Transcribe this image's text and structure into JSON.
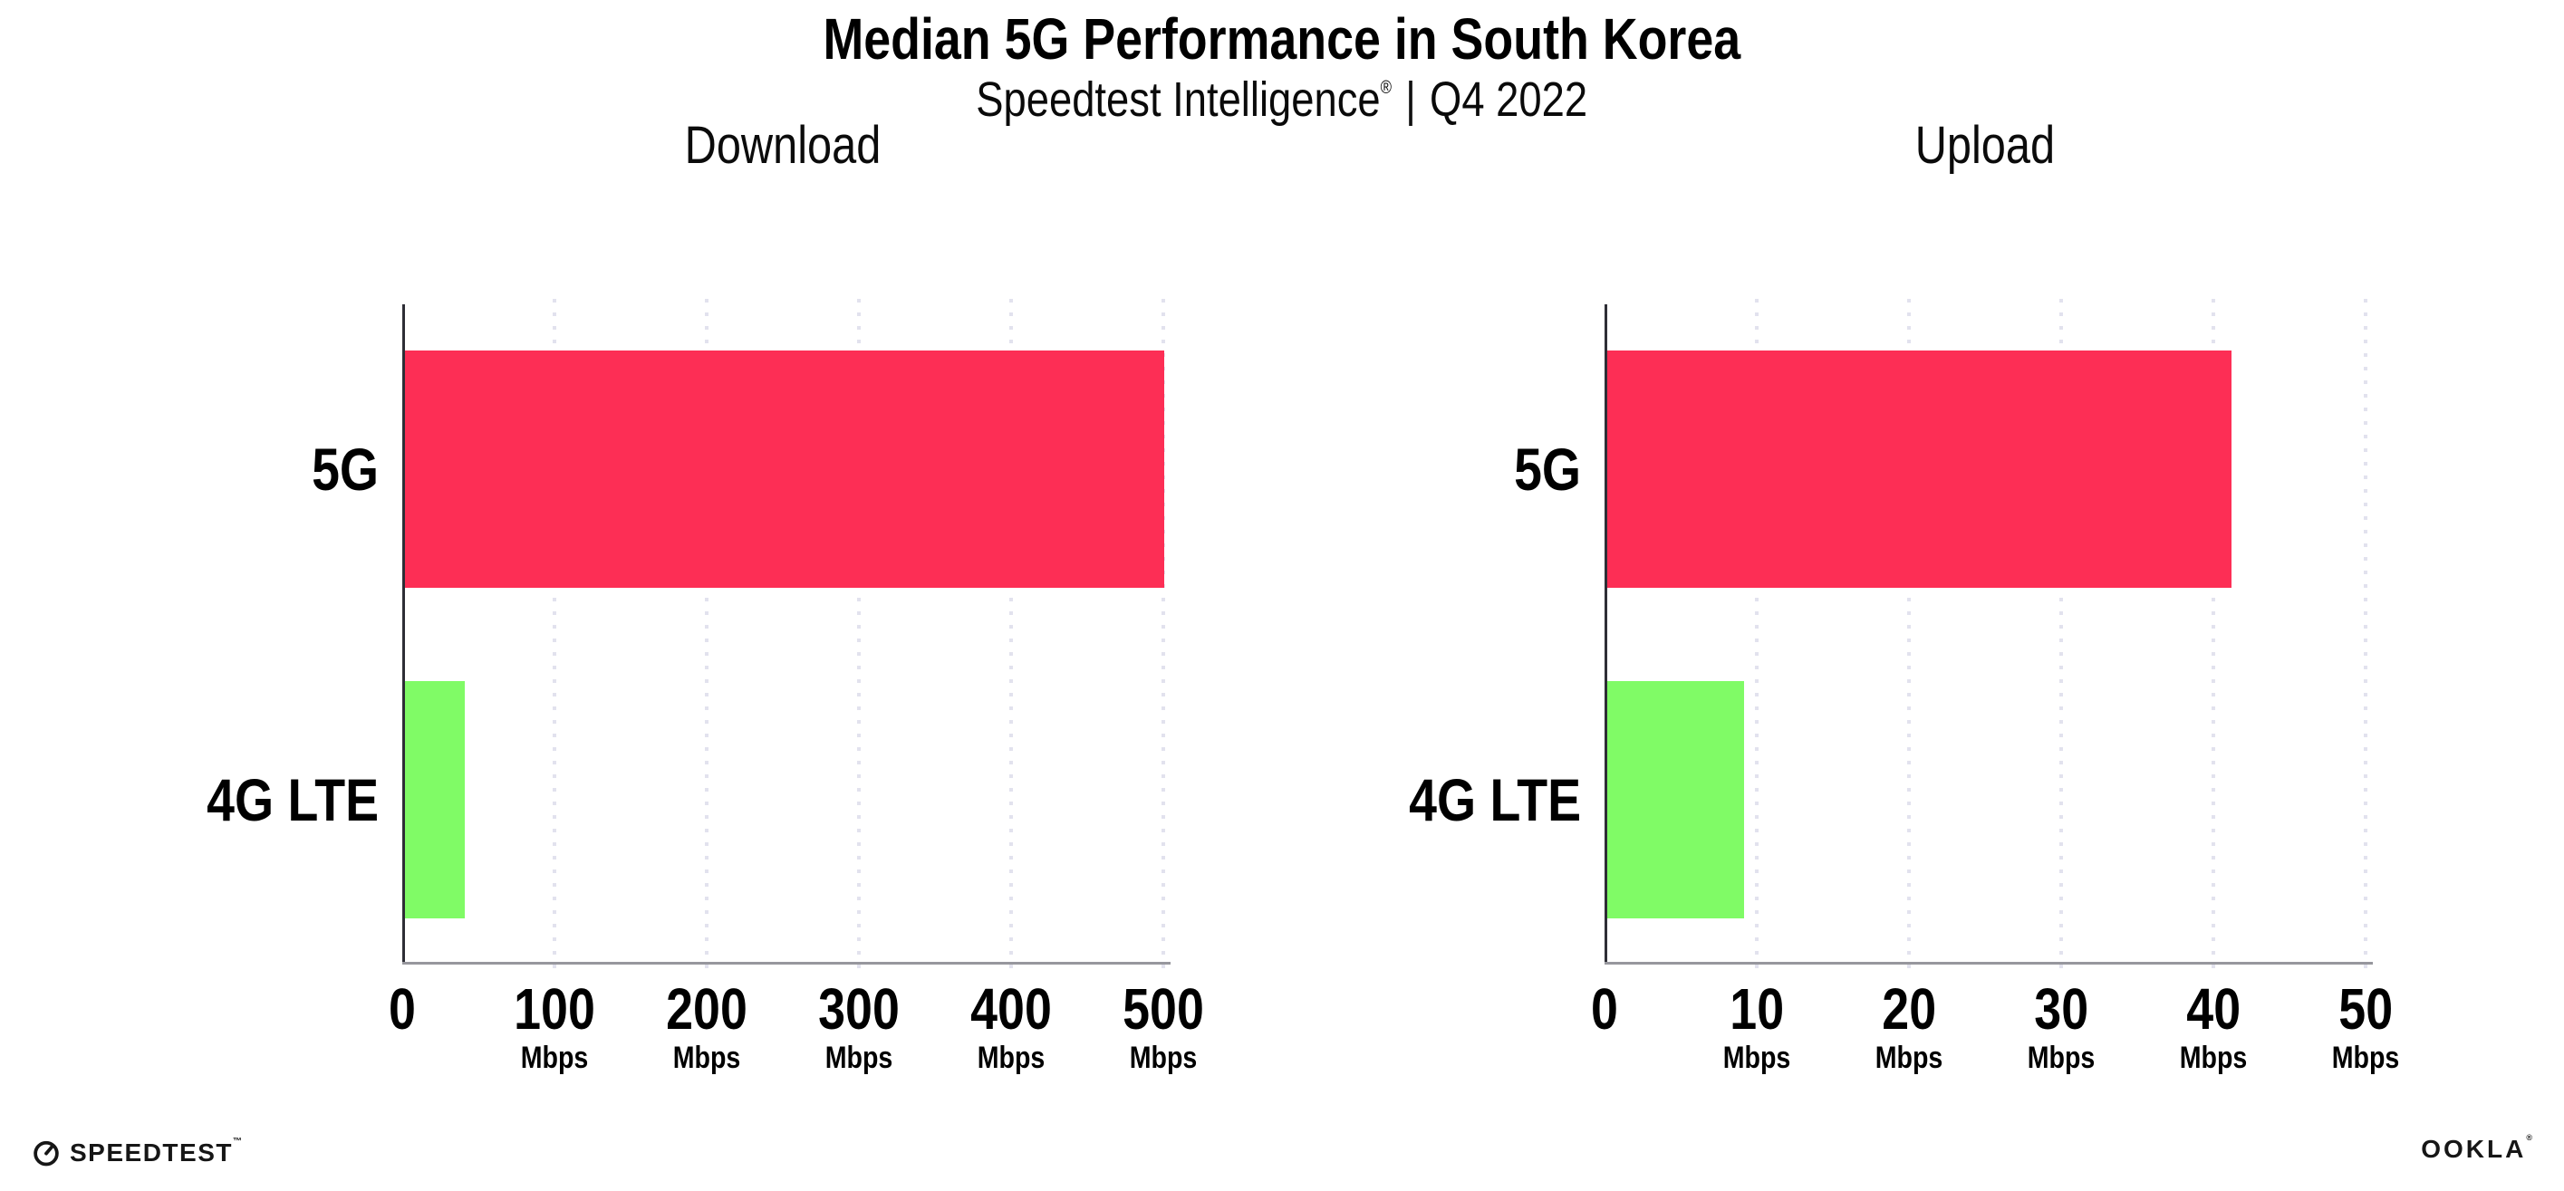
{
  "page": {
    "background": "#FFFFFF"
  },
  "header": {
    "title": "Median 5G Performance in South Korea",
    "subtitle": {
      "brand": "Speedtest Intelligence",
      "registered_mark": "®",
      "divider": "|",
      "period": "Q4 2022"
    }
  },
  "chart_data": [
    {
      "type": "bar",
      "orientation": "horizontal",
      "title": "Download",
      "categories": [
        "5G",
        "4G LTE"
      ],
      "values": [
        499,
        39
      ],
      "unit": "Mbps",
      "xlim": [
        0,
        500
      ],
      "xticks": [
        0,
        100,
        200,
        300,
        400,
        500
      ],
      "bar_colors": [
        "#FD2E55",
        "#80FB66"
      ],
      "gridline_color": "#E2E2EE",
      "grid": "vertical-dotted",
      "legend": "none"
    },
    {
      "type": "bar",
      "orientation": "horizontal",
      "title": "Upload",
      "categories": [
        "5G",
        "4G LTE"
      ],
      "values": [
        41,
        9
      ],
      "unit": "Mbps",
      "xlim": [
        0,
        50
      ],
      "xticks": [
        0,
        10,
        20,
        30,
        40,
        50
      ],
      "bar_colors": [
        "#FD2E55",
        "#80FB66"
      ],
      "gridline_color": "#E2E2EE",
      "grid": "vertical-dotted",
      "legend": "none"
    }
  ],
  "footer": {
    "speedtest": {
      "label": "SPEEDTEST",
      "trademark": "™"
    },
    "ookla": {
      "label": "OOKLA",
      "registered_mark": "®"
    }
  }
}
